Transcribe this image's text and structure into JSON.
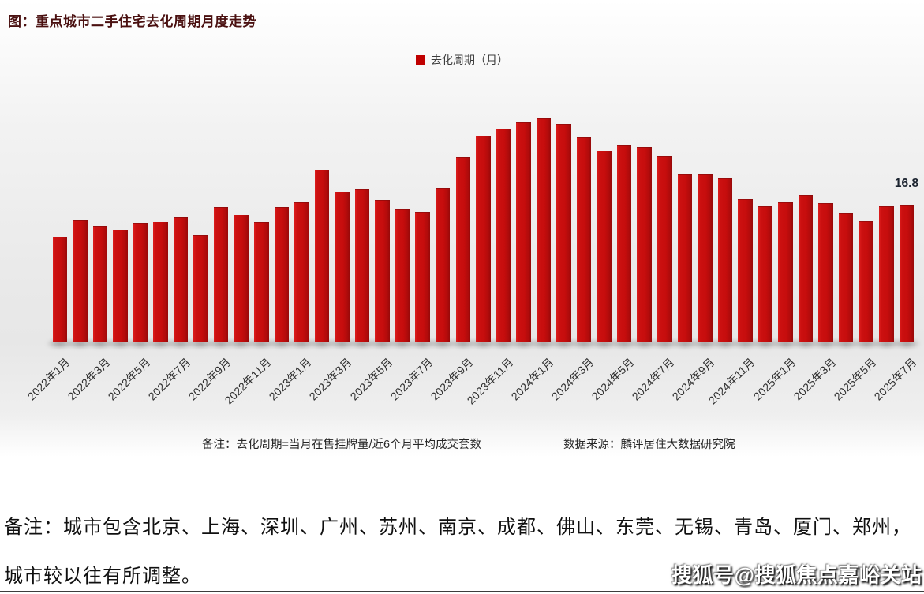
{
  "header": {
    "title": "图：重点城市二手住宅去化周期月度走势"
  },
  "legend": {
    "label": "去化周期（月）",
    "marker_color": "#c00000"
  },
  "chart_data": {
    "type": "bar",
    "title": "图：重点城市二手住宅去化周期月度走势",
    "series_name": "去化周期（月）",
    "categories": [
      "2022年1月",
      "2022年2月",
      "2022年3月",
      "2022年4月",
      "2022年5月",
      "2022年6月",
      "2022年7月",
      "2022年8月",
      "2022年9月",
      "2022年10月",
      "2022年11月",
      "2022年12月",
      "2023年1月",
      "2023年2月",
      "2023年3月",
      "2023年4月",
      "2023年5月",
      "2023年6月",
      "2023年7月",
      "2023年8月",
      "2023年9月",
      "2023年10月",
      "2023年11月",
      "2023年12月",
      "2024年1月",
      "2024年2月",
      "2024年3月",
      "2024年4月",
      "2024年5月",
      "2024年6月",
      "2024年7月",
      "2024年8月",
      "2024年9月",
      "2024年10月",
      "2024年11月",
      "2024年12月",
      "2025年1月",
      "2025年2月",
      "2025年3月",
      "2025年4月",
      "2025年5月",
      "2025年6月",
      "2025年7月"
    ],
    "values": [
      12.9,
      15.0,
      14.2,
      13.8,
      14.6,
      14.8,
      15.3,
      13.1,
      16.5,
      15.6,
      14.7,
      16.5,
      17.2,
      21.2,
      18.4,
      18.7,
      17.4,
      16.3,
      15.9,
      18.9,
      22.7,
      25.3,
      26.2,
      27.0,
      27.4,
      26.8,
      25.1,
      23.5,
      24.2,
      24.0,
      22.8,
      20.6,
      20.6,
      20.1,
      17.6,
      16.7,
      17.2,
      18.1,
      17.1,
      15.8,
      14.9,
      16.7,
      16.8
    ],
    "x_tick_every": 2,
    "ylim": [
      0,
      28
    ],
    "grid": false,
    "bar_color": "#c60d0d",
    "legend_position": "top-center",
    "last_value_label": "16.8"
  },
  "footnotes": {
    "formula": "备注：去化周期=当月在售挂牌量/近6个月平均成交套数",
    "source": "数据来源：麟评居住大数据研究院"
  },
  "bottom_note": {
    "line1": "备注：城市包含北京、上海、深圳、广州、苏州、南京、成都、佛山、东莞、无锡、青岛、厦门、郑州，",
    "line2": "城市较以往有所调整。"
  },
  "watermark": {
    "text": "搜狐号@搜狐焦点嘉峪关站"
  }
}
